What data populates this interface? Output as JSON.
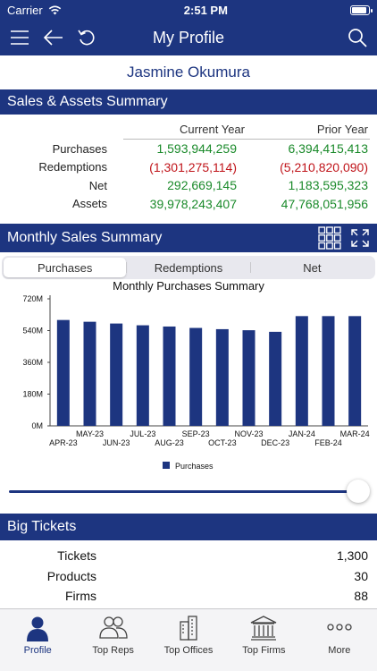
{
  "status": {
    "carrier": "Carrier",
    "time": "2:51 PM"
  },
  "nav": {
    "title": "My Profile"
  },
  "profile": {
    "name": "Jasmine Okumura"
  },
  "sales_assets": {
    "title": "Sales & Assets Summary",
    "col_current": "Current Year",
    "col_prior": "Prior Year",
    "rows": [
      {
        "label": "Purchases",
        "current": "1,593,944,259",
        "prior": "6,394,415,413",
        "negative": false
      },
      {
        "label": "Redemptions",
        "current": "(1,301,275,114)",
        "prior": "(5,210,820,090)",
        "negative": true
      },
      {
        "label": "Net",
        "current": "292,669,145",
        "prior": "1,183,595,323",
        "negative": false
      },
      {
        "label": "Assets",
        "current": "39,978,243,407",
        "prior": "47,768,051,956",
        "negative": false
      }
    ]
  },
  "monthly": {
    "title": "Monthly Sales Summary",
    "segments": [
      "Purchases",
      "Redemptions",
      "Net"
    ],
    "active_segment": 0
  },
  "chart_data": {
    "type": "bar",
    "title": "Monthly Purchases Summary",
    "categories": [
      "APR-23",
      "MAY-23",
      "JUN-23",
      "JUL-23",
      "AUG-23",
      "SEP-23",
      "OCT-23",
      "NOV-23",
      "DEC-23",
      "JAN-24",
      "FEB-24",
      "MAR-24"
    ],
    "series": [
      {
        "name": "Purchases",
        "values": [
          600,
          590,
          580,
          570,
          563,
          555,
          548,
          542,
          533,
          622,
          622,
          622
        ]
      }
    ],
    "yticks": [
      "720M",
      "540M",
      "360M",
      "180M",
      "0M"
    ],
    "ylim": [
      0,
      720
    ],
    "legend": "bottom",
    "color": "#1d3580"
  },
  "big_tickets": {
    "title": "Big Tickets",
    "rows": [
      {
        "label": "Tickets",
        "value": "1,300"
      },
      {
        "label": "Products",
        "value": "30"
      },
      {
        "label": "Firms",
        "value": "88"
      }
    ]
  },
  "tabs": [
    {
      "label": "Profile",
      "icon": "person-icon"
    },
    {
      "label": "Top Reps",
      "icon": "people-icon"
    },
    {
      "label": "Top Offices",
      "icon": "buildings-icon"
    },
    {
      "label": "Top Firms",
      "icon": "bank-icon"
    },
    {
      "label": "More",
      "icon": "more-icon"
    }
  ],
  "colors": {
    "brand": "#1d3580",
    "positive": "#1a8a2a",
    "negative": "#c0141a"
  }
}
